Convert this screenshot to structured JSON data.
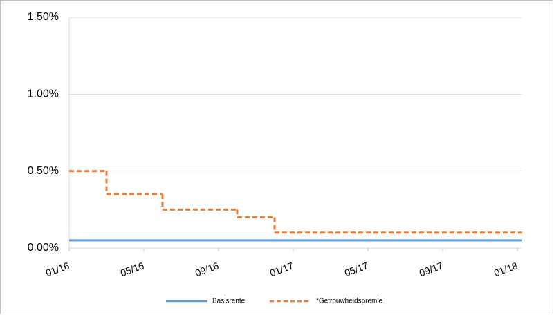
{
  "chart_data": {
    "type": "line",
    "step": "post",
    "xticks": [
      "01/16",
      "05/16",
      "09/16",
      "01/17",
      "05/17",
      "09/17",
      "01/18"
    ],
    "xlim": [
      "01/16",
      "01/18"
    ],
    "ylim": [
      0,
      1.5
    ],
    "yticks": [
      {
        "value": 0,
        "label": "0.00%"
      },
      {
        "value": 0.5,
        "label": "0.50%"
      },
      {
        "value": 1.0,
        "label": "1.00%"
      },
      {
        "value": 1.5,
        "label": "1.50%"
      }
    ],
    "grid": true,
    "legend": "bottom",
    "series": [
      {
        "name": "Basisrente",
        "color": "#5b9bd5",
        "dash": false,
        "x": [
          "01/16",
          "01/18"
        ],
        "values": [
          0.05,
          0.05
        ]
      },
      {
        "name": "*Getrouwheidspremie",
        "color": "#ed7d31",
        "dash": true,
        "x": [
          "01/16",
          "03/16",
          "06/16",
          "10/16",
          "12/16",
          "01/18"
        ],
        "values": [
          0.5,
          0.35,
          0.25,
          0.2,
          0.1,
          0.1
        ]
      }
    ]
  }
}
